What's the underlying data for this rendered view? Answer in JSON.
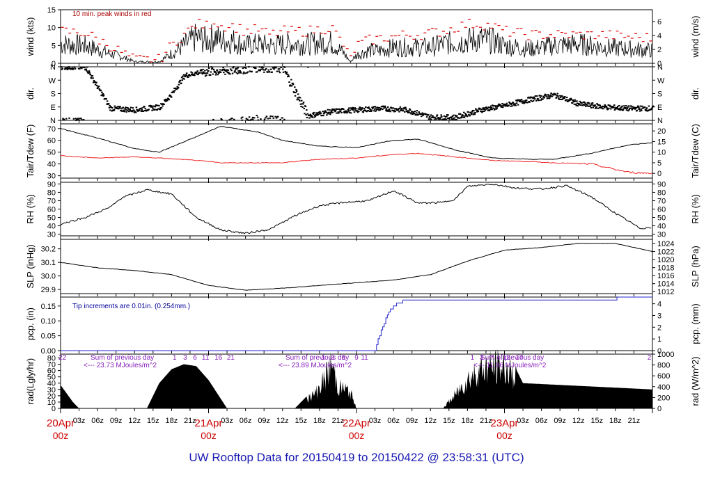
{
  "title": "UW Rooftop Data for 20150419  to  20150422 @ 23:58:31  (UTC)",
  "colors": {
    "axis": "#000000",
    "peak": "#dd0000",
    "dew": "#ee2222",
    "pcp": "#2222cc",
    "note_blue": "#000099",
    "note_red": "#aa0000",
    "note_purple": "#8822bb",
    "date_red": "#cc0000",
    "footer": "#1a1ab3"
  },
  "chart_data": [
    {
      "type": "line",
      "panel": "wind",
      "ylabel_left": "wind (kts)",
      "ylabel_right": "wind (m/s)",
      "ylim": [
        0,
        15
      ],
      "yticks": [
        0,
        5,
        10,
        15
      ],
      "right_ylim": [
        0,
        7.72
      ],
      "right_yticks": [
        0,
        2,
        4,
        6
      ],
      "annotation": "10 min. peak winds in red",
      "x_hours": [
        0,
        4,
        8,
        10,
        12,
        14,
        16,
        18,
        20,
        22,
        24,
        25,
        26,
        28,
        30,
        32,
        34,
        36,
        40,
        44,
        46,
        47,
        48,
        50,
        52,
        54,
        56,
        58,
        60,
        62,
        64,
        66,
        68,
        70,
        72,
        76,
        80,
        84,
        88,
        92,
        96
      ],
      "series": [
        {
          "values": [
            6,
            5.5,
            3,
            2,
            0.5,
            0.5,
            0.5,
            3,
            5.5,
            8,
            7,
            8.5,
            7,
            7,
            5.5,
            6,
            5.5,
            6,
            6,
            6.5,
            3,
            0.5,
            2.5,
            4,
            4,
            5,
            5,
            5,
            5,
            6,
            6.5,
            7,
            7.5,
            7,
            5.5,
            4.5,
            5.5,
            6,
            5,
            4.5,
            4
          ]
        },
        {
          "values": [
            9,
            8.5,
            5,
            3,
            1,
            1,
            1,
            5,
            8,
            11,
            10.5,
            12,
            10.5,
            10.5,
            9,
            9.5,
            8,
            9,
            9,
            10,
            5,
            1,
            5,
            6.5,
            7,
            7.5,
            8,
            8,
            8.5,
            9,
            10,
            11,
            11,
            10.5,
            9,
            8,
            8,
            8,
            8,
            7.5,
            7
          ]
        }
      ]
    },
    {
      "type": "scatter",
      "panel": "dir",
      "ylabel_left": "dir.",
      "ylabel_right": "dir.",
      "ytick_labels": [
        "N",
        "E",
        "S",
        "W",
        "N"
      ],
      "x_hours": [
        0,
        4,
        8,
        12,
        16,
        18,
        20,
        22,
        24,
        28,
        32,
        36,
        40,
        44,
        48,
        52,
        56,
        60,
        64,
        68,
        72,
        76,
        80,
        84,
        88,
        92,
        96
      ],
      "values": [
        360,
        355,
        80,
        70,
        90,
        180,
        300,
        320,
        330,
        340,
        360,
        350,
        30,
        60,
        70,
        80,
        70,
        20,
        20,
        70,
        100,
        140,
        170,
        110,
        90,
        80,
        80
      ]
    },
    {
      "type": "line",
      "panel": "temp",
      "ylabel_left": "Tair/Tdew (F)",
      "ylabel_right": "Tair/Tdew (C)",
      "ylim": [
        28,
        74
      ],
      "yticks": [
        30,
        40,
        50,
        60,
        70
      ],
      "right_yticks": [
        0,
        5,
        10,
        15,
        20
      ],
      "x_hours": [
        0,
        6,
        12,
        16,
        22,
        26,
        32,
        36,
        42,
        48,
        54,
        58,
        64,
        70,
        76,
        80,
        86,
        92,
        96
      ],
      "series": [
        {
          "name": "Tair",
          "values": [
            70,
            62,
            53,
            50,
            63,
            72,
            67,
            60,
            55,
            54,
            60,
            61,
            52,
            45,
            44,
            44,
            49,
            56,
            58
          ]
        },
        {
          "name": "Tdew",
          "values": [
            47,
            45,
            46,
            45,
            43,
            41,
            41,
            41,
            44,
            45,
            48,
            49,
            46,
            43,
            42,
            41,
            40,
            33,
            32
          ]
        }
      ]
    },
    {
      "type": "line",
      "panel": "rh",
      "ylabel_left": "RH (%)",
      "ylabel_right": "RH (%)",
      "ylim": [
        28,
        92
      ],
      "yticks": [
        30,
        40,
        50,
        60,
        70,
        80,
        90
      ],
      "x_hours": [
        0,
        4,
        8,
        10,
        14,
        18,
        22,
        26,
        30,
        34,
        38,
        42,
        46,
        50,
        54,
        58,
        62,
        64,
        66,
        70,
        74,
        78,
        82,
        86,
        90,
        94,
        96
      ],
      "values": [
        42,
        50,
        62,
        74,
        83,
        78,
        50,
        35,
        31,
        36,
        52,
        64,
        68,
        70,
        82,
        67,
        68,
        72,
        87,
        90,
        85,
        84,
        88,
        75,
        55,
        37,
        38
      ]
    },
    {
      "type": "line",
      "panel": "slp",
      "ylabel_left": "SLP (inHg)",
      "ylabel_right": "SLP (hPa)",
      "ylim": [
        29.87,
        30.27
      ],
      "yticks": [
        29.9,
        30.0,
        30.1,
        30.2
      ],
      "right_yticks": [
        1012,
        1014,
        1016,
        1018,
        1020,
        1022,
        1024
      ],
      "x_hours": [
        0,
        6,
        12,
        18,
        24,
        30,
        36,
        42,
        48,
        54,
        60,
        66,
        72,
        78,
        84,
        90,
        96
      ],
      "values": [
        30.1,
        30.06,
        30.04,
        30.01,
        29.93,
        29.895,
        29.91,
        29.93,
        29.95,
        29.97,
        30.01,
        30.11,
        30.19,
        30.21,
        30.24,
        30.24,
        30.18
      ]
    },
    {
      "type": "line",
      "panel": "pcp",
      "ylabel_left": "pcp. (in)",
      "ylabel_right": "pcp. (mm)",
      "ylim": [
        0,
        0.18
      ],
      "yticks": [
        0.0,
        0.05,
        0.1,
        0.15
      ],
      "right_yticks": [
        0,
        1,
        2,
        3,
        4
      ],
      "annotation": "Tip increments are 0.01in. (0.254mm.)",
      "x_hours": [
        0,
        51,
        51.5,
        53,
        54,
        56,
        90,
        90.5,
        96
      ],
      "values": [
        0,
        0,
        0.04,
        0.12,
        0.15,
        0.17,
        0.17,
        0.18,
        0.18
      ]
    },
    {
      "type": "area",
      "panel": "rad",
      "ylabel_left": "rad(Lgly/hr)",
      "ylabel_right": "rad (W/m^2)",
      "ylim": [
        0,
        86
      ],
      "yticks": [
        0,
        10,
        20,
        30,
        40,
        50,
        60,
        70,
        80
      ],
      "right_yticks": [
        0,
        200,
        400,
        600,
        800,
        1000
      ],
      "hour_labels": [
        "22",
        "1",
        "3",
        "6",
        "11",
        "16",
        "21",
        "1",
        "3",
        "6",
        "9",
        "11",
        "1",
        "3",
        "7",
        "12",
        "17",
        "2"
      ],
      "annotations": [
        {
          "text": "Sum of previous day",
          "value": "<--- 23.73 MJoules/m^2"
        },
        {
          "text": "Sum of previous day",
          "value": "<--- 23.89 MJoules/m^2"
        },
        {
          "text": "Sum of previous day",
          "value": "<--- 11.96 MJoules/m^2"
        }
      ],
      "x_hours": [
        0,
        2,
        3,
        14,
        16,
        18,
        20,
        22,
        24,
        26,
        27,
        38,
        40,
        41,
        42,
        43,
        44,
        45,
        46,
        47,
        48,
        62,
        64,
        66,
        68,
        70,
        72,
        74,
        75,
        96
      ],
      "values": [
        37,
        10,
        0,
        0,
        40,
        62,
        70,
        67,
        45,
        15,
        0,
        0,
        20,
        25,
        40,
        60,
        85,
        40,
        38,
        30,
        0,
        0,
        25,
        55,
        75,
        80,
        78,
        60,
        40,
        30
      ]
    }
  ],
  "xaxis": {
    "tick_labels": [
      "03z",
      "06z",
      "09z",
      "12z",
      "15z",
      "18z",
      "21z"
    ],
    "date_labels": [
      {
        "date": "20Apr",
        "hour": "00z"
      },
      {
        "date": "21Apr",
        "hour": "00z"
      },
      {
        "date": "22Apr",
        "hour": "00z"
      },
      {
        "date": "23Apr",
        "hour": "00z"
      }
    ],
    "xlim": [
      0,
      96
    ]
  }
}
